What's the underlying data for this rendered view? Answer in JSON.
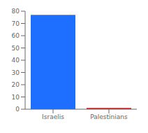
{
  "chart_data": {
    "type": "bar",
    "categories": [
      "Israelis",
      "Palestinians"
    ],
    "values": [
      77,
      1
    ],
    "colors": [
      "#1e6fff",
      "#cc1111"
    ],
    "ylim": [
      0,
      80
    ],
    "yticks": [
      0,
      10,
      20,
      30,
      40,
      50,
      60,
      70,
      80
    ]
  }
}
